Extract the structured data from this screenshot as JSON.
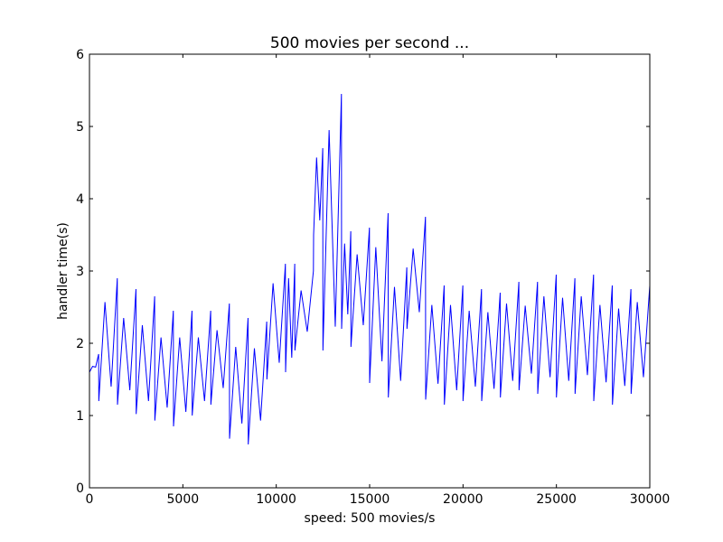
{
  "chart_data": {
    "type": "line",
    "title": "500 movies per second ...",
    "xlabel": "speed: 500 movies/s",
    "ylabel": "handler time(s)",
    "xlim": [
      0,
      30000
    ],
    "ylim": [
      0,
      6
    ],
    "xticks": [
      0,
      5000,
      10000,
      15000,
      20000,
      25000,
      30000
    ],
    "yticks": [
      0,
      1,
      2,
      3,
      4,
      5,
      6
    ],
    "grid": false,
    "series": [
      {
        "name": "handler time",
        "color": "#0000ff",
        "x": [
          0,
          165,
          330,
          490,
          500,
          830,
          1160,
          1490,
          1500,
          1830,
          2160,
          2490,
          2500,
          2830,
          3160,
          3490,
          3500,
          3830,
          4160,
          4490,
          4500,
          4830,
          5160,
          5490,
          5500,
          5830,
          6160,
          6490,
          6500,
          6830,
          7160,
          7490,
          7500,
          7830,
          8160,
          8490,
          8500,
          8830,
          9160,
          9490,
          9500,
          9830,
          10160,
          10490,
          10500,
          10660,
          10830,
          10990,
          11000,
          11330,
          11660,
          11990,
          12000,
          12160,
          12330,
          12490,
          12500,
          12830,
          13160,
          13490,
          13500,
          13660,
          13830,
          13990,
          14000,
          14330,
          14660,
          14990,
          15000,
          15330,
          15660,
          15990,
          16000,
          16330,
          16660,
          16990,
          17000,
          17330,
          17660,
          17990,
          18000,
          18330,
          18660,
          18990,
          19000,
          19330,
          19660,
          19990,
          20000,
          20330,
          20660,
          20990,
          21000,
          21330,
          21660,
          21990,
          22000,
          22330,
          22660,
          22990,
          23000,
          23330,
          23660,
          23990,
          24000,
          24330,
          24660,
          24990,
          25000,
          25330,
          25660,
          25990,
          26000,
          26330,
          26660,
          26990,
          27000,
          27330,
          27660,
          27990,
          28000,
          28330,
          28660,
          28990,
          29000,
          29330,
          29660,
          30000
        ],
        "values": [
          1.6,
          1.68,
          1.67,
          1.85,
          1.2,
          2.57,
          1.4,
          2.9,
          1.15,
          2.35,
          1.35,
          2.75,
          1.02,
          2.25,
          1.2,
          2.65,
          0.93,
          2.08,
          1.11,
          2.45,
          0.85,
          2.08,
          1.05,
          2.45,
          1.0,
          2.08,
          1.2,
          2.45,
          1.15,
          2.18,
          1.38,
          2.55,
          0.68,
          1.95,
          0.89,
          2.35,
          0.6,
          1.93,
          0.93,
          2.3,
          1.5,
          2.83,
          1.73,
          3.1,
          1.6,
          2.9,
          1.8,
          3.1,
          1.9,
          2.73,
          2.16,
          3.0,
          3.5,
          4.57,
          3.7,
          4.7,
          1.9,
          4.95,
          2.23,
          5.45,
          2.2,
          3.38,
          2.4,
          3.55,
          1.95,
          3.23,
          2.25,
          3.6,
          1.45,
          3.33,
          1.75,
          3.8,
          1.25,
          2.78,
          1.48,
          3.05,
          2.2,
          3.31,
          2.43,
          3.75,
          1.22,
          2.53,
          1.44,
          2.8,
          1.15,
          2.53,
          1.35,
          2.8,
          1.2,
          2.45,
          1.4,
          2.75,
          1.2,
          2.43,
          1.37,
          2.7,
          1.25,
          2.55,
          1.48,
          2.85,
          1.35,
          2.52,
          1.58,
          2.85,
          1.3,
          2.65,
          1.53,
          2.95,
          1.25,
          2.63,
          1.48,
          2.9,
          1.3,
          2.65,
          1.56,
          2.95,
          1.2,
          2.53,
          1.46,
          2.8,
          1.15,
          2.48,
          1.41,
          2.75,
          1.3,
          2.57,
          1.53,
          2.8
        ]
      }
    ]
  }
}
